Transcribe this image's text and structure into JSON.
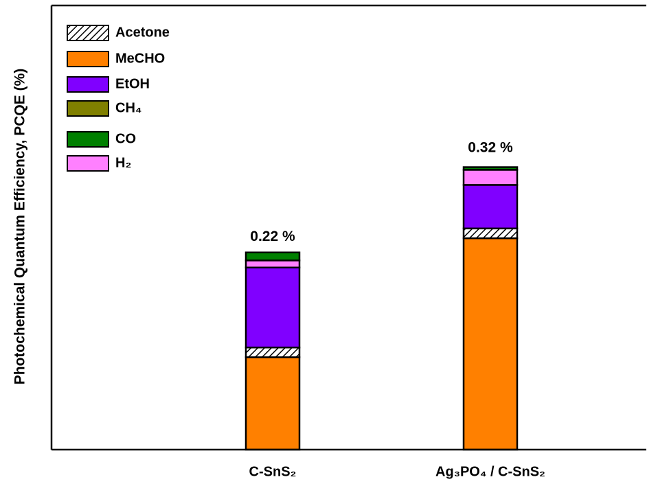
{
  "chart_data": {
    "type": "stacked_bar",
    "y_label": "Photochemical Quantum Efficiency, PCQE (%)",
    "categories": [
      "C-SnS₂",
      "Ag₃PO₄ / C-SnS₂"
    ],
    "ylim": [
      0,
      0.5
    ],
    "series": [
      {
        "name": "MeCHO",
        "color": "#ff8000",
        "values": [
          0.104,
          0.238
        ]
      },
      {
        "name": "Acetone",
        "color": "#ffffff",
        "hatch": true,
        "values": [
          0.011,
          0.011
        ]
      },
      {
        "name": "EtOH",
        "color": "#8000ff",
        "values": [
          0.09,
          0.049
        ]
      },
      {
        "name": "CH₄",
        "color": "#808000",
        "values": [
          0,
          0
        ]
      },
      {
        "name": "H₂",
        "color": "#ff80ff",
        "values": [
          0.008,
          0.017
        ]
      },
      {
        "name": "CO",
        "color": "#008000",
        "values": [
          0.009,
          0.003
        ]
      }
    ],
    "totals": [
      0.22,
      0.32
    ],
    "total_labels": [
      "0.22 %",
      "0.32 %"
    ],
    "legend": "upper left"
  }
}
